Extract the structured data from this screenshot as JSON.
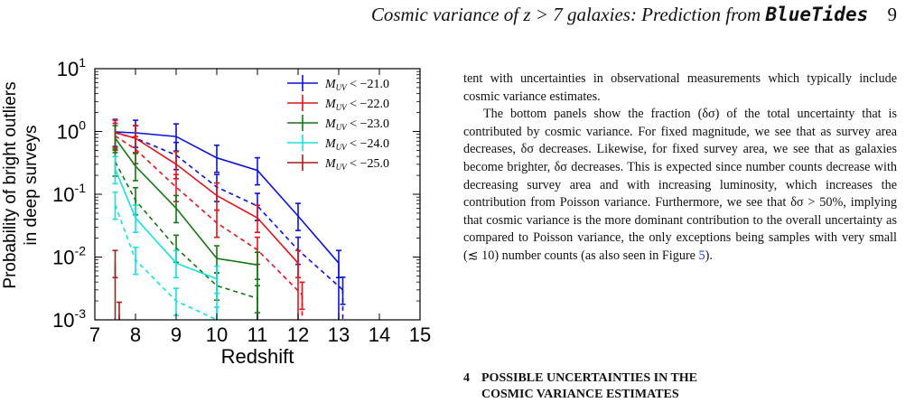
{
  "header": {
    "title_prefix": "Cosmic variance of z > 7 galaxies: Prediction from",
    "title_code": "BlueTides",
    "page_number": "9"
  },
  "chart_data": {
    "type": "line",
    "xlabel": "Redshift",
    "ylabel_line1": "Probability of bright outliers",
    "ylabel_line2": "in deep surveys",
    "xlim": [
      7,
      15
    ],
    "ylim": [
      0.001,
      10
    ],
    "yscale": "log",
    "xticks": [
      "7",
      "8",
      "9",
      "10",
      "11",
      "12",
      "13",
      "14",
      "15"
    ],
    "yticks": [
      {
        "base": "10",
        "exp": "1",
        "value": 10
      },
      {
        "base": "10",
        "exp": "0",
        "value": 1
      },
      {
        "base": "10",
        "exp": "-1",
        "value": 0.1
      },
      {
        "base": "10",
        "exp": "-2",
        "value": 0.01
      },
      {
        "base": "10",
        "exp": "-3",
        "value": 0.001
      }
    ],
    "legend_position": "top-right",
    "series": [
      {
        "name": "M_UV < −21.0",
        "mag": "−21.0",
        "color": "#0a12d8",
        "solid": [
          [
            7.5,
            0.98
          ],
          [
            8,
            0.95
          ],
          [
            9,
            0.83
          ],
          [
            10,
            0.38
          ],
          [
            11,
            0.24
          ],
          [
            12,
            0.045
          ],
          [
            13,
            0.008
          ]
        ],
        "dashed": [
          [
            7.5,
            0.95
          ],
          [
            8,
            0.78
          ],
          [
            9,
            0.42
          ],
          [
            10,
            0.13
          ],
          [
            11,
            0.065
          ],
          [
            12,
            0.013
          ],
          [
            13.1,
            0.003
          ]
        ]
      },
      {
        "name": "M_UV < −22.0",
        "mag": "−22.0",
        "color": "#e0141c",
        "solid": [
          [
            7.5,
            0.96
          ],
          [
            8,
            0.78
          ],
          [
            9,
            0.3
          ],
          [
            10,
            0.095
          ],
          [
            11,
            0.042
          ],
          [
            12,
            0.008
          ]
        ],
        "dashed": [
          [
            7.5,
            0.85
          ],
          [
            8,
            0.52
          ],
          [
            9,
            0.13
          ],
          [
            10,
            0.035
          ],
          [
            11,
            0.013
          ],
          [
            12.1,
            0.0025
          ]
        ]
      },
      {
        "name": "M_UV < −23.0",
        "mag": "−23.0",
        "color": "#127812",
        "solid": [
          [
            7.5,
            0.78
          ],
          [
            8,
            0.28
          ],
          [
            9,
            0.06
          ],
          [
            10,
            0.0095
          ],
          [
            11,
            0.0075
          ]
        ],
        "dashed": [
          [
            7.5,
            0.33
          ],
          [
            8,
            0.08
          ],
          [
            9,
            0.014
          ],
          [
            10,
            0.0035
          ],
          [
            11,
            0.0022
          ]
        ]
      },
      {
        "name": "M_UV < −24.0",
        "mag": "−24.0",
        "color": "#12e2e2",
        "solid": [
          [
            7.5,
            0.25
          ],
          [
            8,
            0.042
          ],
          [
            9,
            0.008
          ],
          [
            10,
            0.0045
          ]
        ],
        "dashed": [
          [
            7.5,
            0.068
          ],
          [
            8,
            0.009
          ],
          [
            9,
            0.002
          ],
          [
            10,
            0.001
          ]
        ]
      },
      {
        "name": "M_UV < −25.0",
        "mag": "−25.0",
        "color": "#a81c1c",
        "solid": [
          [
            7.5,
            0.008
          ]
        ],
        "dashed": [
          [
            7.6,
            0.0012
          ]
        ]
      }
    ]
  },
  "body": {
    "para1": "tent with uncertainties in observational measurements which typically include cosmic variance estimates.",
    "para2_a": "The bottom panels show the fraction (δσ) of the total uncertainty that is contributed by cosmic variance. For fixed magnitude, we see that as survey area decreases, δσ decreases. Likewise, for fixed survey area, we see that as galaxies become brighter, δσ decreases. This is expected since number counts decrease with decreasing survey area and with increasing luminosity, which increases the contribution from Poisson variance. Furthermore, we see that δσ > 50%, implying that cosmic variance is the more dominant contribution to the overall uncertainty as compared to Poisson variance, the only exceptions being samples with very small (≲ 10) number counts (as also seen in Figure ",
    "para2_link": "5",
    "para2_b": ")."
  },
  "section": {
    "number": "4",
    "title_line1": "POSSIBLE UNCERTAINTIES IN THE",
    "title_line2": "COSMIC VARIANCE ESTIMATES"
  }
}
